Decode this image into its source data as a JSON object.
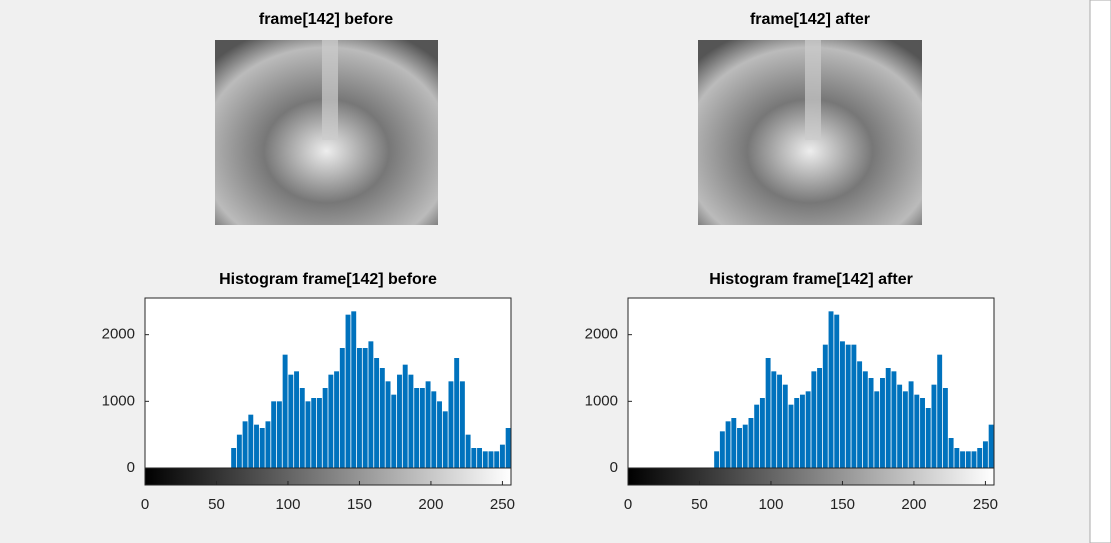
{
  "images": [
    {
      "title": "frame[142] before"
    },
    {
      "title": "frame[142] after"
    }
  ],
  "chart_data": [
    {
      "type": "histogram",
      "title": "Histogram frame[142] before",
      "color": "#0072bd",
      "bins": [
        0,
        4,
        8,
        12,
        16,
        20,
        24,
        28,
        32,
        36,
        40,
        44,
        48,
        52,
        56,
        60,
        64,
        68,
        72,
        76,
        80,
        84,
        88,
        92,
        96,
        100,
        104,
        108,
        112,
        116,
        120,
        124,
        128,
        132,
        136,
        140,
        144,
        148,
        152,
        156,
        160,
        164,
        168,
        172,
        176,
        180,
        184,
        188,
        192,
        196,
        200,
        204,
        208,
        212,
        216,
        220,
        224,
        228,
        232,
        236,
        240,
        244,
        248,
        252,
        256
      ],
      "values": [
        0,
        0,
        0,
        0,
        0,
        0,
        0,
        0,
        0,
        0,
        0,
        0,
        0,
        0,
        0,
        300,
        500,
        700,
        800,
        650,
        600,
        700,
        1000,
        1000,
        1700,
        1400,
        1450,
        1200,
        1000,
        1050,
        1050,
        1200,
        1400,
        1450,
        1800,
        2300,
        2350,
        1800,
        1800,
        1900,
        1650,
        1500,
        1300,
        1100,
        1400,
        1550,
        1400,
        1200,
        1200,
        1300,
        1150,
        1000,
        850,
        1300,
        1650,
        1300,
        500,
        300,
        300,
        250,
        250,
        250,
        350,
        600
      ],
      "xlim": [
        0,
        256
      ],
      "ylim": [
        0,
        2550
      ],
      "xticks": [
        0,
        50,
        100,
        150,
        200,
        250
      ],
      "yticks": [
        0,
        1000,
        2000
      ]
    },
    {
      "type": "histogram",
      "title": "Histogram frame[142] after",
      "color": "#0072bd",
      "bins": [
        0,
        4,
        8,
        12,
        16,
        20,
        24,
        28,
        32,
        36,
        40,
        44,
        48,
        52,
        56,
        60,
        64,
        68,
        72,
        76,
        80,
        84,
        88,
        92,
        96,
        100,
        104,
        108,
        112,
        116,
        120,
        124,
        128,
        132,
        136,
        140,
        144,
        148,
        152,
        156,
        160,
        164,
        168,
        172,
        176,
        180,
        184,
        188,
        192,
        196,
        200,
        204,
        208,
        212,
        216,
        220,
        224,
        228,
        232,
        236,
        240,
        244,
        248,
        252,
        256
      ],
      "values": [
        0,
        0,
        0,
        0,
        0,
        0,
        0,
        0,
        0,
        0,
        0,
        0,
        0,
        0,
        0,
        250,
        550,
        700,
        750,
        600,
        650,
        750,
        950,
        1050,
        1650,
        1450,
        1400,
        1250,
        950,
        1050,
        1100,
        1150,
        1450,
        1500,
        1850,
        2350,
        2300,
        1900,
        1850,
        1850,
        1600,
        1450,
        1350,
        1150,
        1350,
        1500,
        1450,
        1250,
        1150,
        1300,
        1100,
        1050,
        900,
        1250,
        1700,
        1200,
        450,
        300,
        250,
        250,
        250,
        300,
        400,
        650
      ],
      "xlim": [
        0,
        256
      ],
      "ylim": [
        0,
        2550
      ],
      "xticks": [
        0,
        50,
        100,
        150,
        200,
        250
      ],
      "yticks": [
        0,
        1000,
        2000
      ]
    }
  ]
}
